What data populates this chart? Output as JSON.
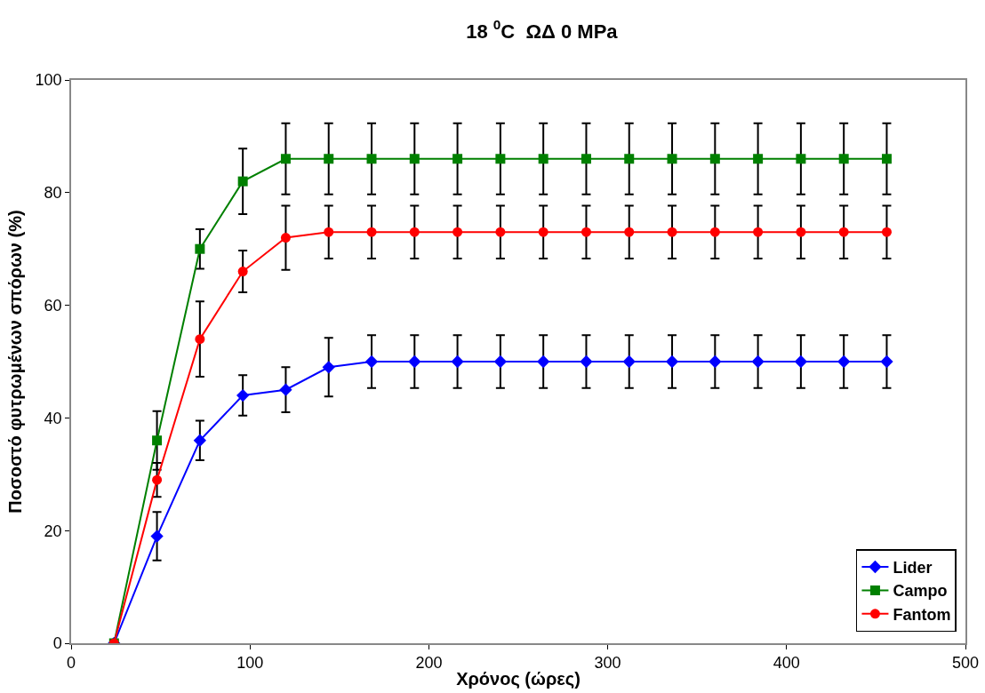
{
  "chart_data": {
    "type": "line",
    "title": "18 $^{0}$C  ΩΔ 0 MPa",
    "xlabel": "Χρόνος (ώρες)",
    "ylabel": "Ποσοστό φυτρωμένων σπόρων (%)",
    "x": [
      24,
      48,
      72,
      96,
      120,
      144,
      168,
      192,
      216,
      240,
      264,
      288,
      312,
      336,
      360,
      384,
      408,
      432,
      456
    ],
    "xlim": [
      0,
      500
    ],
    "xticks": [
      0,
      100,
      200,
      300,
      400,
      500
    ],
    "ylim": [
      0,
      100
    ],
    "yticks": [
      0,
      20,
      40,
      60,
      80,
      100
    ],
    "grid": false,
    "legend": "bottom right",
    "series": [
      {
        "name": "Lider",
        "color": "#0000ff",
        "marker": "diamond",
        "values": [
          0,
          19,
          36,
          44,
          45,
          49,
          50,
          50,
          50,
          50,
          50,
          50,
          50,
          50,
          50,
          50,
          50,
          50,
          50
        ],
        "errors": [
          null,
          4.3,
          3.5,
          3.6,
          4,
          5.2,
          4.7,
          4.7,
          4.7,
          4.7,
          4.7,
          4.7,
          4.7,
          4.7,
          4.7,
          4.7,
          4.7,
          4.7,
          4.7
        ]
      },
      {
        "name": "Campo",
        "color": "#008000",
        "marker": "square",
        "values": [
          0,
          36,
          70,
          82,
          86,
          86,
          86,
          86,
          86,
          86,
          86,
          86,
          86,
          86,
          86,
          86,
          86,
          86,
          86
        ],
        "errors": [
          null,
          5.2,
          3.5,
          5.8,
          6.3,
          6.3,
          6.3,
          6.3,
          6.3,
          6.3,
          6.3,
          6.3,
          6.3,
          6.3,
          6.3,
          6.3,
          6.3,
          6.3,
          6.3
        ]
      },
      {
        "name": "Fantom",
        "color": "#ff0000",
        "marker": "circle",
        "values": [
          0,
          29,
          54,
          66,
          72,
          73,
          73,
          73,
          73,
          73,
          73,
          73,
          73,
          73,
          73,
          73,
          73,
          73,
          73
        ],
        "errors": [
          null,
          3,
          6.7,
          3.7,
          5.7,
          4.7,
          4.7,
          4.7,
          4.7,
          4.7,
          4.7,
          4.7,
          4.7,
          4.7,
          4.7,
          4.7,
          4.7,
          4.7,
          4.7
        ]
      }
    ]
  }
}
